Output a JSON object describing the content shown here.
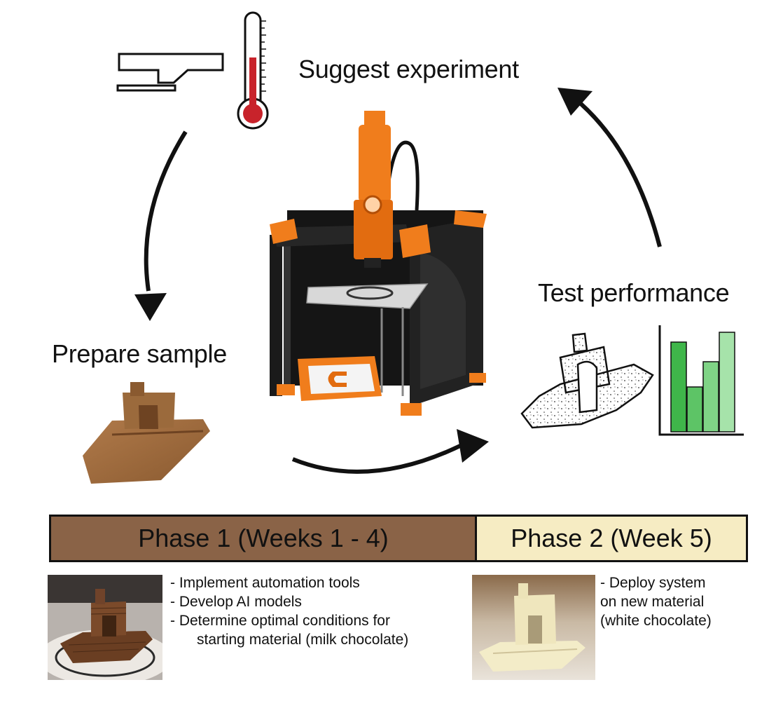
{
  "cycle": {
    "suggest_label": "Suggest experiment",
    "test_label": "Test performance",
    "prepare_label": "Prepare sample"
  },
  "phases": {
    "phase1": {
      "title": "Phase 1 (Weeks 1 - 4)",
      "bullets": [
        "- Implement automation tools",
        "- Develop AI models",
        "- Determine optimal conditions for",
        "starting material (milk chocolate)"
      ]
    },
    "phase2": {
      "title": "Phase 2 (Week 5)",
      "bullets": [
        "- Deploy system",
        "on new material",
        "(white chocolate)"
      ]
    }
  },
  "colors": {
    "phase1_fill": "#8a6347",
    "phase2_fill": "#f6ecc3",
    "printer_orange": "#f07d1c",
    "thermometer_red": "#c8232b",
    "bar_greens": [
      "#3fb64a",
      "#5dc466",
      "#7fd486",
      "#a6e3aa"
    ]
  },
  "icons": [
    "nozzle-icon",
    "thermometer-icon",
    "bar-chart-icon",
    "printer-icon",
    "boat-icon"
  ]
}
